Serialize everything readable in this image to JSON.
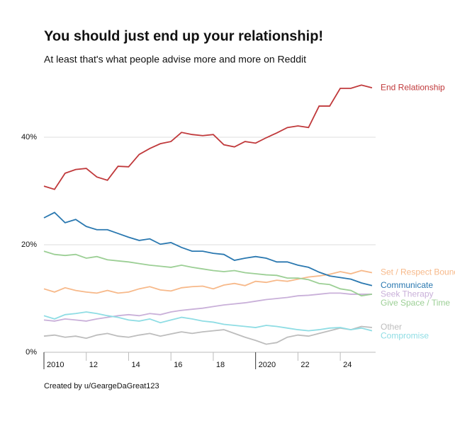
{
  "chart_data": {
    "type": "line",
    "title": "You should just end up your relationship!",
    "subtitle": "At least that's what people advise more and more on Reddit",
    "caption": "Created by u/GeargeDaGreat123",
    "x": [
      2010,
      2010.5,
      2011,
      2011.5,
      2012,
      2012.5,
      2013,
      2013.5,
      2014,
      2014.5,
      2015,
      2015.5,
      2016,
      2016.5,
      2017,
      2017.5,
      2018,
      2018.5,
      2019,
      2019.5,
      2020,
      2020.5,
      2021,
      2021.5,
      2022,
      2022.5,
      2023,
      2023.5,
      2024,
      2024.5,
      2025,
      2025.5
    ],
    "xlim": [
      2010,
      2025.67
    ],
    "xticks": [
      {
        "value": 2010,
        "label": "2010"
      },
      {
        "value": 2012,
        "label": "12"
      },
      {
        "value": 2014,
        "label": "14"
      },
      {
        "value": 2016,
        "label": "16"
      },
      {
        "value": 2018,
        "label": "18"
      },
      {
        "value": 2020,
        "label": "2020"
      },
      {
        "value": 2022,
        "label": "22"
      },
      {
        "value": 2024,
        "label": "24"
      }
    ],
    "ylim": [
      0,
      50
    ],
    "yticks": [
      {
        "value": 0,
        "label": "0%"
      },
      {
        "value": 20,
        "label": "20%"
      },
      {
        "value": 40,
        "label": "40%"
      }
    ],
    "grid": true,
    "series": [
      {
        "name": "End Relationship",
        "color": "#c0393b",
        "values": [
          30.9,
          30.3,
          33.3,
          34.0,
          34.2,
          32.6,
          32.0,
          34.6,
          34.5,
          36.8,
          37.9,
          38.8,
          39.2,
          40.9,
          40.5,
          40.3,
          40.5,
          38.6,
          38.2,
          39.2,
          38.9,
          39.9,
          40.8,
          41.8,
          42.1,
          41.8,
          45.8,
          45.8,
          49.1,
          49.1,
          49.7,
          49.2
        ]
      },
      {
        "name": "Set / Respect Boundaries",
        "color": "#f7b98a",
        "values": [
          11.8,
          11.2,
          12.0,
          11.5,
          11.2,
          11.0,
          11.5,
          11.0,
          11.2,
          11.8,
          12.2,
          11.6,
          11.4,
          12.0,
          12.2,
          12.3,
          11.8,
          12.5,
          12.8,
          12.4,
          13.2,
          13.0,
          13.4,
          13.2,
          13.6,
          14.0,
          14.2,
          14.5,
          15.0,
          14.6,
          15.2,
          14.8
        ]
      },
      {
        "name": "Communicate",
        "color": "#2a78b0",
        "values": [
          25.0,
          26.0,
          24.1,
          24.7,
          23.4,
          22.8,
          22.8,
          22.1,
          21.4,
          20.8,
          21.1,
          20.1,
          20.4,
          19.5,
          18.8,
          18.8,
          18.4,
          18.2,
          17.1,
          17.5,
          17.8,
          17.5,
          16.8,
          16.8,
          16.2,
          15.8,
          14.9,
          14.2,
          13.9,
          13.6,
          12.9,
          12.4
        ]
      },
      {
        "name": "Seek Therapy",
        "color": "#c9b0d9",
        "values": [
          6.0,
          5.8,
          6.2,
          6.0,
          5.8,
          6.2,
          6.5,
          6.8,
          7.0,
          6.8,
          7.2,
          7.0,
          7.5,
          7.8,
          8.0,
          8.2,
          8.5,
          8.8,
          9.0,
          9.2,
          9.5,
          9.8,
          10.0,
          10.2,
          10.5,
          10.6,
          10.8,
          11.0,
          11.0,
          10.8,
          10.8,
          10.8
        ]
      },
      {
        "name": "Give Space / Time",
        "color": "#9ccf95",
        "values": [
          18.8,
          18.2,
          18.0,
          18.2,
          17.5,
          17.8,
          17.2,
          17.0,
          16.8,
          16.5,
          16.2,
          16.0,
          15.8,
          16.2,
          15.8,
          15.5,
          15.2,
          15.0,
          15.2,
          14.8,
          14.6,
          14.4,
          14.3,
          13.8,
          13.8,
          13.5,
          12.8,
          12.6,
          11.8,
          11.5,
          10.5,
          10.8
        ]
      },
      {
        "name": "Other",
        "color": "#bdbdbd",
        "values": [
          3.0,
          3.2,
          2.8,
          3.0,
          2.6,
          3.2,
          3.5,
          3.0,
          2.8,
          3.2,
          3.5,
          3.0,
          3.4,
          3.8,
          3.5,
          3.8,
          4.0,
          4.2,
          3.5,
          2.8,
          2.2,
          1.5,
          1.8,
          2.8,
          3.2,
          3.0,
          3.5,
          4.0,
          4.5,
          4.2,
          4.8,
          4.6
        ]
      },
      {
        "name": "Compromise",
        "color": "#8fdde4",
        "values": [
          6.8,
          6.2,
          7.0,
          7.2,
          7.5,
          7.2,
          6.8,
          6.5,
          6.0,
          5.8,
          6.2,
          5.5,
          6.0,
          6.5,
          6.2,
          5.8,
          5.6,
          5.2,
          5.0,
          4.8,
          4.6,
          5.0,
          4.8,
          4.5,
          4.2,
          4.0,
          4.2,
          4.5,
          4.6,
          4.2,
          4.5,
          4.0
        ]
      }
    ]
  }
}
